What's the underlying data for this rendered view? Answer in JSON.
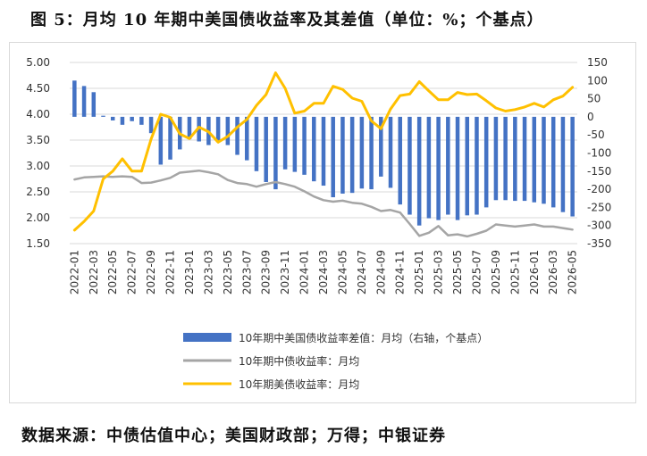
{
  "title": "图 5：月均 10 年期中美国债收益率及其差值（单位：%；个基点）",
  "source": "数据来源：中债估值中心；美国财政部；万得；中银证券",
  "chart_data": {
    "type": "bar+line",
    "categories": [
      "2022-01",
      "2022-02",
      "2022-03",
      "2022-04",
      "2022-05",
      "2022-06",
      "2022-07",
      "2022-08",
      "2022-09",
      "2022-10",
      "2022-11",
      "2022-12",
      "2023-01",
      "2023-02",
      "2023-03",
      "2023-04",
      "2023-05",
      "2023-06",
      "2023-07",
      "2023-08",
      "2023-09",
      "2023-10",
      "2023-11",
      "2023-12",
      "2024-01",
      "2024-02",
      "2024-03",
      "2024-04",
      "2024-05",
      "2024-06",
      "2024-07",
      "2024-08",
      "2024-09",
      "2024-10",
      "2024-11",
      "2024-12",
      "2025-01",
      "2025-02",
      "2025-03",
      "2025-04",
      "2025-05",
      "2025-06",
      "2025-07",
      "2025-08",
      "2025-09",
      "2025-10",
      "2025-11",
      "2025-12",
      "2026-01",
      "2026-02",
      "2026-03",
      "2026-04",
      "2026-05"
    ],
    "tick_labels": [
      "2022-01",
      "2022-03",
      "2022-05",
      "2022-07",
      "2022-09",
      "2022-11",
      "2023-01",
      "2023-03",
      "2023-05",
      "2023-07",
      "2023-09",
      "2023-11",
      "2024-01",
      "2024-03",
      "2024-05",
      "2024-07",
      "2024-09",
      "2024-11",
      "2025-01",
      "2025-03",
      "2025-05",
      "2025-07",
      "2025-09",
      "2025-11",
      "2026-01",
      "2026-03",
      "2026-05"
    ],
    "y_left": {
      "min": 1.5,
      "max": 5.0,
      "step": 0.5,
      "ticks": [
        "1.50",
        "2.00",
        "2.50",
        "3.00",
        "3.50",
        "4.00",
        "4.50",
        "5.00"
      ]
    },
    "y_right": {
      "min": -350,
      "max": 150,
      "step": 50,
      "ticks": [
        "-350",
        "-300",
        "-250",
        "-200",
        "-150",
        "-100",
        "-50",
        "0",
        "50",
        "100",
        "150"
      ]
    },
    "grid": "horizontal",
    "legend_position": "bottom",
    "series": [
      {
        "name": "10年期中美国债收益率差值：月均（右轴，个基点）",
        "type": "bar",
        "axis": "right",
        "color": "#4472c4",
        "values": [
          100,
          85,
          68,
          3,
          -10,
          -22,
          -12,
          -22,
          -45,
          -132,
          -118,
          -90,
          -62,
          -68,
          -78,
          -70,
          -78,
          -105,
          -120,
          -150,
          -180,
          -200,
          -145,
          -152,
          -160,
          -178,
          -190,
          -222,
          -212,
          -210,
          -198,
          -200,
          -165,
          -196,
          -242,
          -270,
          -300,
          -280,
          -285,
          -270,
          -285,
          -272,
          -270,
          -250,
          -230,
          -230,
          -232,
          -232,
          -236,
          -240,
          -250,
          -263,
          -275
        ]
      },
      {
        "name": "10年期中债收益率：月均",
        "type": "line",
        "axis": "left",
        "color": "#a5a5a5",
        "values": [
          2.74,
          2.78,
          2.79,
          2.8,
          2.79,
          2.8,
          2.79,
          2.67,
          2.68,
          2.72,
          2.77,
          2.87,
          2.89,
          2.91,
          2.88,
          2.84,
          2.73,
          2.67,
          2.65,
          2.6,
          2.65,
          2.69,
          2.65,
          2.6,
          2.51,
          2.41,
          2.34,
          2.31,
          2.33,
          2.29,
          2.27,
          2.21,
          2.13,
          2.15,
          2.1,
          1.88,
          1.65,
          1.71,
          1.84,
          1.66,
          1.68,
          1.64,
          1.69,
          1.75,
          1.87,
          1.85,
          1.83,
          1.85,
          1.87,
          1.83,
          1.83,
          1.8,
          1.77
        ]
      },
      {
        "name": "10年期美债收益率：月均",
        "type": "line",
        "axis": "right_as_left",
        "color": "#ffc000",
        "values": [
          1.76,
          1.93,
          2.13,
          2.75,
          2.9,
          3.14,
          2.9,
          2.9,
          3.52,
          4.0,
          3.94,
          3.62,
          3.53,
          3.75,
          3.66,
          3.46,
          3.57,
          3.75,
          3.9,
          4.17,
          4.38,
          4.8,
          4.5,
          4.02,
          4.06,
          4.21,
          4.21,
          4.54,
          4.48,
          4.31,
          4.25,
          3.87,
          3.72,
          4.1,
          4.36,
          4.39,
          4.63,
          4.45,
          4.28,
          4.28,
          4.42,
          4.38,
          4.39,
          4.26,
          4.12,
          4.06,
          4.09,
          4.14,
          4.21,
          4.14,
          4.28,
          4.35,
          4.52
        ]
      }
    ]
  }
}
